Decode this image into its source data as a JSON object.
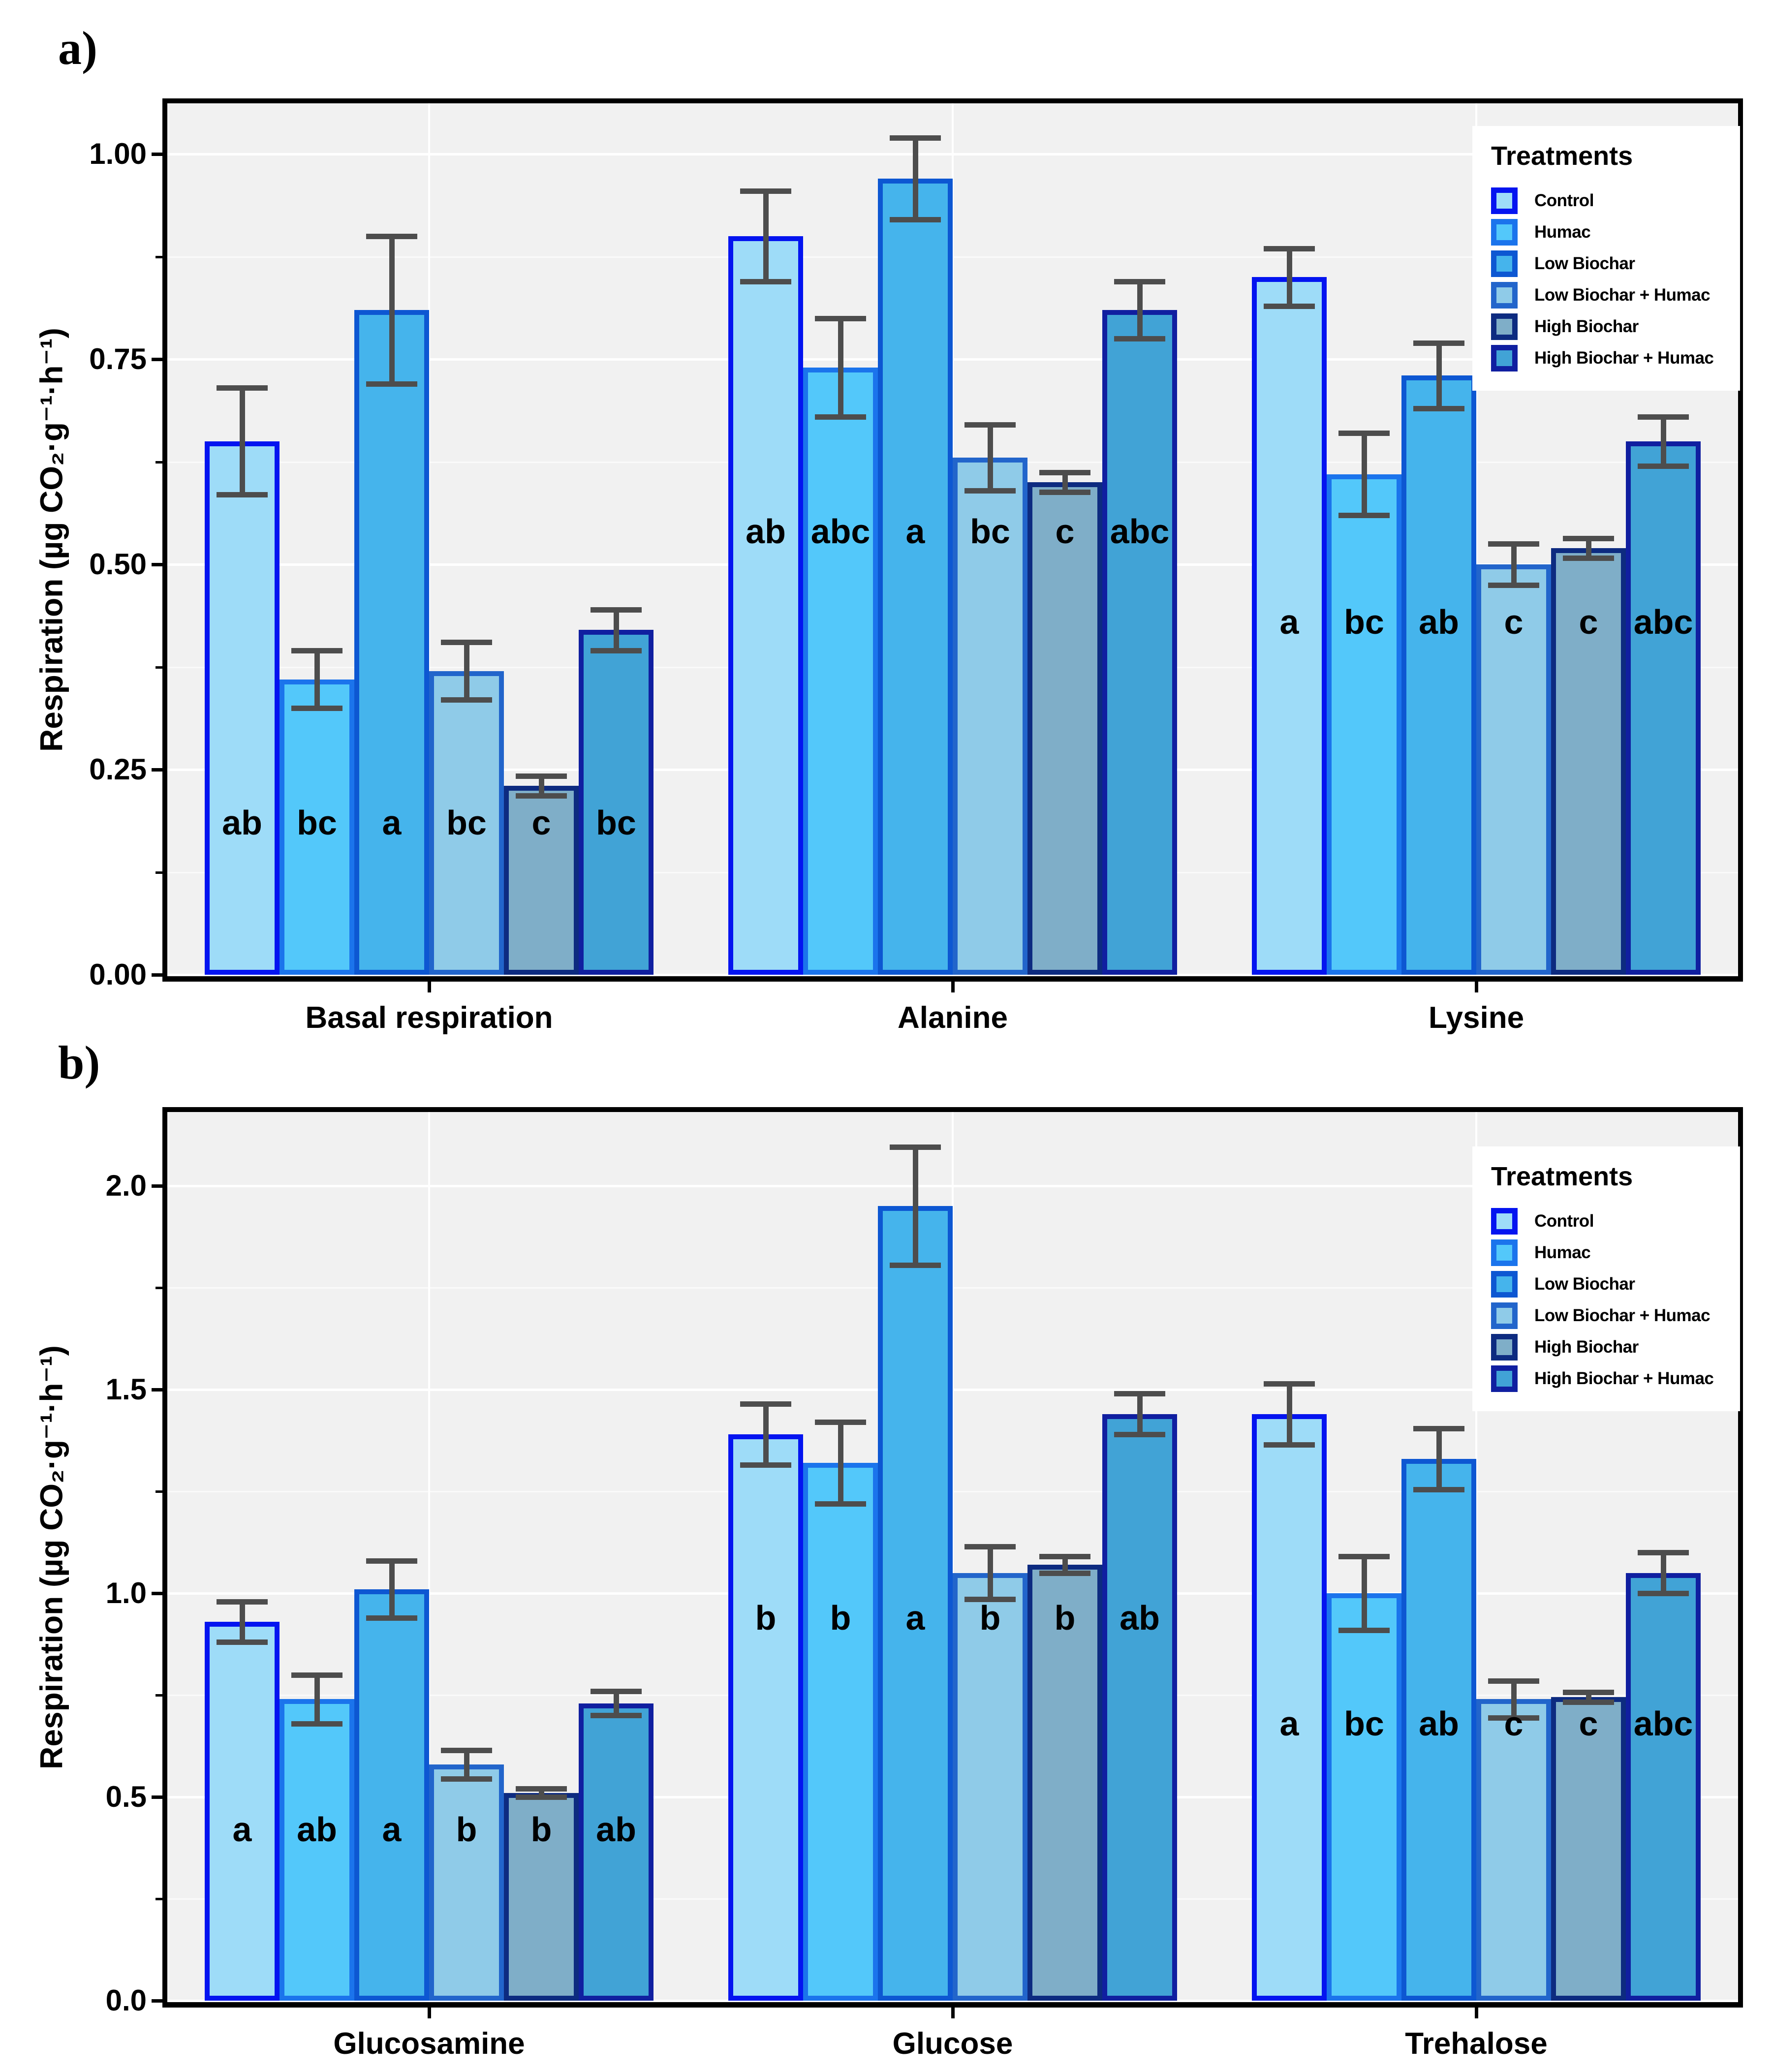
{
  "figure": {
    "panel_a_label": "a)",
    "panel_b_label": "b)",
    "y_axis_title": "Respiration (µg CO₂·g⁻¹·h⁻¹)"
  },
  "legend": {
    "title": "Treatments",
    "items": [
      {
        "label": "Control",
        "fill": "#9EDCF8",
        "border": "#0414F0"
      },
      {
        "label": "Humac",
        "fill": "#53C8FA",
        "border": "#1B74EC"
      },
      {
        "label": "Low Biochar",
        "fill": "#45B4EC",
        "border": "#0D57D2"
      },
      {
        "label": "Low Biochar + Humac",
        "fill": "#8FCBE8",
        "border": "#2265CB"
      },
      {
        "label": "High Biochar",
        "fill": "#7FAEC8",
        "border": "#0D2B80"
      },
      {
        "label": "High Biochar + Humac",
        "fill": "#41A3D6",
        "border": "#101FA0"
      }
    ]
  },
  "chart_data": [
    {
      "panel": "a",
      "type": "bar",
      "title": "",
      "xlabel": "",
      "ylabel": "Respiration (µg CO₂·g⁻¹·h⁻¹)",
      "categories": [
        "Basal respiration",
        "Alanine",
        "Lysine"
      ],
      "treatments": [
        "Control",
        "Humac",
        "Low Biochar",
        "Low Biochar + Humac",
        "High Biochar",
        "High Biochar + Humac"
      ],
      "series": [
        {
          "name": "Control",
          "values": [
            0.65,
            0.9,
            0.85
          ],
          "errors": [
            0.065,
            0.055,
            0.035
          ]
        },
        {
          "name": "Humac",
          "values": [
            0.36,
            0.74,
            0.61
          ],
          "errors": [
            0.035,
            0.06,
            0.05
          ]
        },
        {
          "name": "Low Biochar",
          "values": [
            0.81,
            0.97,
            0.73
          ],
          "errors": [
            0.09,
            0.05,
            0.04
          ]
        },
        {
          "name": "Low Biochar + Humac",
          "values": [
            0.37,
            0.63,
            0.5
          ],
          "errors": [
            0.035,
            0.04,
            0.025
          ]
        },
        {
          "name": "High Biochar",
          "values": [
            0.23,
            0.6,
            0.52
          ],
          "errors": [
            0.012,
            0.012,
            0.012
          ]
        },
        {
          "name": "High Biochar + Humac",
          "values": [
            0.42,
            0.81,
            0.65
          ],
          "errors": [
            0.025,
            0.035,
            0.03
          ]
        }
      ],
      "letters": [
        [
          "ab",
          "bc",
          "a",
          "bc",
          "c",
          "bc"
        ],
        [
          "ab",
          "abc",
          "a",
          "bc",
          "c",
          "abc"
        ],
        [
          "a",
          "bc",
          "ab",
          "c",
          "c",
          "abc"
        ]
      ],
      "letter_y": [
        0.185,
        0.54,
        0.43
      ],
      "y_ticks": {
        "labels": [
          "0.00",
          "0.25",
          "0.50",
          "0.75",
          "1.00"
        ],
        "values": [
          0,
          0.25,
          0.5,
          0.75,
          1.0
        ]
      },
      "y_minor": [
        0.125,
        0.375,
        0.625,
        0.875
      ],
      "ylim": [
        0,
        1.06
      ],
      "grid": true,
      "legend_position": "top-right"
    },
    {
      "panel": "b",
      "type": "bar",
      "title": "",
      "xlabel": "",
      "ylabel": "Respiration (µg CO₂·g⁻¹·h⁻¹)",
      "categories": [
        "Glucosamine",
        "Glucose",
        "Trehalose"
      ],
      "treatments": [
        "Control",
        "Humac",
        "Low Biochar",
        "Low Biochar + Humac",
        "High Biochar",
        "High Biochar + Humac"
      ],
      "series": [
        {
          "name": "Control",
          "values": [
            0.93,
            1.39,
            1.44
          ],
          "errors": [
            0.05,
            0.075,
            0.075
          ]
        },
        {
          "name": "Humac",
          "values": [
            0.74,
            1.32,
            1.0
          ],
          "errors": [
            0.06,
            0.1,
            0.09
          ]
        },
        {
          "name": "Low Biochar",
          "values": [
            1.01,
            1.95,
            1.33
          ],
          "errors": [
            0.07,
            0.145,
            0.075
          ]
        },
        {
          "name": "Low Biochar + Humac",
          "values": [
            0.58,
            1.05,
            0.74
          ],
          "errors": [
            0.035,
            0.065,
            0.045
          ]
        },
        {
          "name": "High Biochar",
          "values": [
            0.51,
            1.07,
            0.745
          ],
          "errors": [
            0.01,
            0.02,
            0.012
          ]
        },
        {
          "name": "High Biochar + Humac",
          "values": [
            0.73,
            1.44,
            1.05
          ],
          "errors": [
            0.03,
            0.05,
            0.05
          ]
        }
      ],
      "letters": [
        [
          "a",
          "ab",
          "a",
          "b",
          "b",
          "ab"
        ],
        [
          "b",
          "b",
          "a",
          "b",
          "b",
          "ab"
        ],
        [
          "a",
          "bc",
          "ab",
          "c",
          "c",
          "abc"
        ]
      ],
      "letter_y": [
        0.42,
        0.94,
        0.68
      ],
      "y_ticks": {
        "labels": [
          "0.0",
          "0.5",
          "1.0",
          "1.5",
          "2.0"
        ],
        "values": [
          0,
          0.5,
          1.0,
          1.5,
          2.0
        ]
      },
      "y_minor": [
        0.25,
        0.75,
        1.25,
        1.75
      ],
      "ylim": [
        0,
        2.18
      ],
      "grid": true,
      "legend_position": "top-right"
    }
  ],
  "error_bar_color": "#4D4D4D",
  "panel_background": "#F1F1F1"
}
